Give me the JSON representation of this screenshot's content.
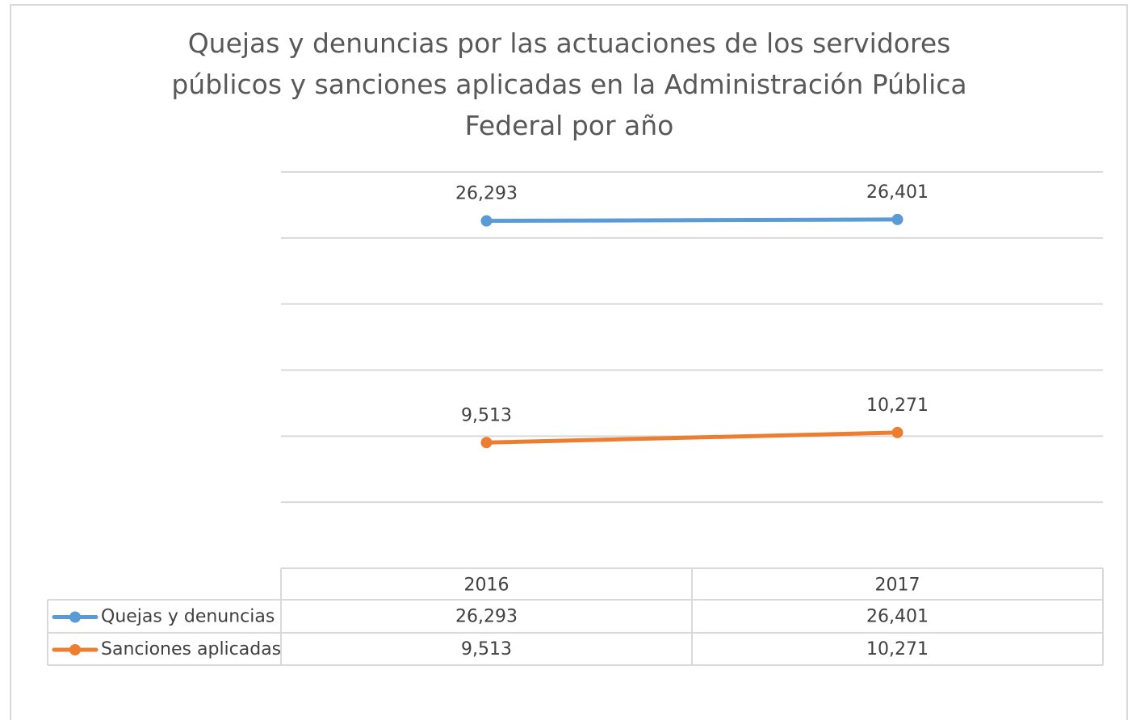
{
  "chart_data": {
    "type": "line",
    "title": "Quejas y denuncias por las actuaciones de los servidores públicos y sanciones aplicadas en la Administración Pública Federal por año",
    "categories": [
      "2016",
      "2017"
    ],
    "series": [
      {
        "name": "Quejas y denuncias",
        "color": "#5b9bd5",
        "values": [
          26293,
          26401
        ],
        "value_labels": [
          "26,293",
          "26,401"
        ]
      },
      {
        "name": "Sanciones aplicadas",
        "color": "#ed7d31",
        "values": [
          9513,
          10271
        ],
        "value_labels": [
          "9,513",
          "10,271"
        ]
      }
    ],
    "ylim": [
      0,
      30000
    ],
    "yticks": [
      0,
      5000,
      10000,
      15000,
      20000,
      25000,
      30000
    ],
    "grid": true
  }
}
